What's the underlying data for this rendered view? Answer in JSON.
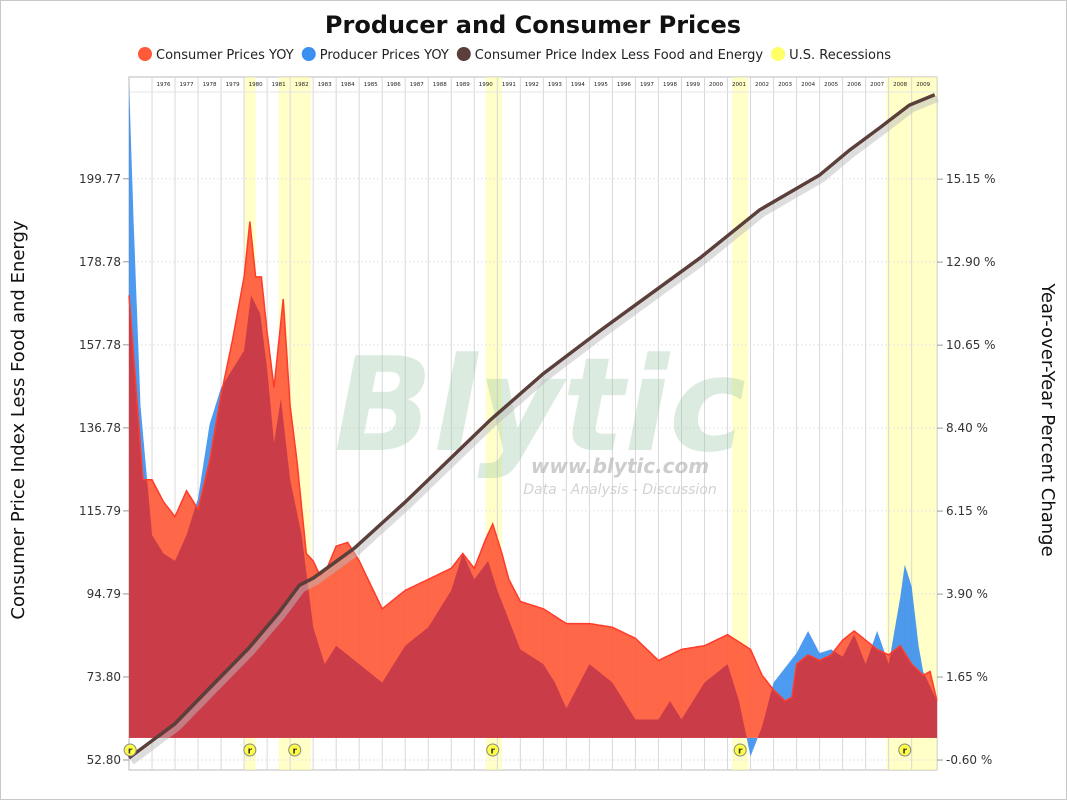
{
  "chart_data": {
    "type": "area",
    "title": "Producer and Consumer Prices",
    "ylabel_left": "Consumer Price Index Less Food and Energy",
    "ylabel_right": "Year-over-Year Percent Change",
    "xlim": [
      1975.0,
      2010.1
    ],
    "ylim_left": [
      50.27,
      225.5
    ],
    "ylim_right": [
      -0.87,
      17.92
    ],
    "grid": true,
    "legend_position": "top",
    "year_labels": [
      "1976",
      "1977",
      "1978",
      "1979",
      "1980",
      "1981",
      "1982",
      "1983",
      "1984",
      "1985",
      "1986",
      "1987",
      "1988",
      "1989",
      "1990",
      "1991",
      "1992",
      "1993",
      "1994",
      "1995",
      "1996",
      "1997",
      "1998",
      "1999",
      "2000",
      "2001",
      "2002",
      "2003",
      "2004",
      "2005",
      "2006",
      "2007",
      "2008",
      "2009"
    ],
    "left_ticks": [
      "52.80",
      "73.80",
      "94.79",
      "115.79",
      "136.78",
      "157.78",
      "178.78",
      "199.77"
    ],
    "left_tick_values": [
      52.8,
      73.8,
      94.79,
      115.79,
      136.78,
      157.78,
      178.78,
      199.77
    ],
    "right_ticks": [
      "-0.60 %",
      "1.65 %",
      "3.90 %",
      "6.15 %",
      "8.40 %",
      "10.65 %",
      "12.90 %",
      "15.15 %"
    ],
    "right_tick_values": [
      -0.6,
      1.65,
      3.9,
      6.15,
      8.4,
      10.65,
      12.9,
      15.15
    ],
    "legend": [
      {
        "label": "Consumer Prices YOY",
        "color": "#ff5a3a"
      },
      {
        "label": "Producer Prices YOY",
        "color": "#3a8ff0"
      },
      {
        "label": "Consumer Price Index Less Food and Energy",
        "color": "#5a3f3a"
      },
      {
        "label": "U.S. Recessions",
        "color": "#ffff66"
      }
    ],
    "series": [
      {
        "name": "Consumer Prices YOY",
        "axis": "right",
        "color": "#ff5a3a",
        "x": [
          1975.0,
          1975.3,
          1975.6,
          1976.0,
          1976.5,
          1977.0,
          1977.5,
          1978.0,
          1978.5,
          1979.0,
          1979.5,
          1980.0,
          1980.25,
          1980.5,
          1980.75,
          1981.0,
          1981.3,
          1981.7,
          1982.0,
          1982.3,
          1982.7,
          1983.0,
          1983.3,
          1983.6,
          1984.0,
          1984.5,
          1985.0,
          1986.0,
          1987.0,
          1988.0,
          1989.0,
          1989.5,
          1990.0,
          1990.5,
          1990.8,
          1991.2,
          1991.5,
          1992.0,
          1993.0,
          1994.0,
          1995.0,
          1996.0,
          1997.0,
          1998.0,
          1999.0,
          2000.0,
          2001.0,
          2001.5,
          2002.0,
          2002.5,
          2003.0,
          2003.5,
          2003.8,
          2004.0,
          2004.5,
          2005.0,
          2005.5,
          2006.0,
          2006.5,
          2007.0,
          2007.5,
          2008.0,
          2008.5,
          2009.0,
          2009.5,
          2009.8,
          2010.1
        ],
        "values": [
          12.0,
          9.5,
          7.0,
          7.0,
          6.4,
          6.0,
          6.7,
          6.2,
          7.5,
          9.3,
          10.8,
          12.5,
          14.0,
          12.5,
          12.5,
          11.0,
          9.5,
          11.9,
          9.0,
          7.5,
          5.0,
          4.8,
          4.4,
          4.6,
          5.2,
          5.3,
          4.8,
          3.5,
          4.0,
          4.3,
          4.6,
          5.0,
          4.6,
          5.4,
          5.8,
          5.0,
          4.3,
          3.7,
          3.5,
          3.1,
          3.1,
          3.0,
          2.7,
          2.1,
          2.4,
          2.5,
          2.8,
          2.6,
          2.4,
          1.7,
          1.3,
          1.0,
          1.1,
          2.0,
          2.25,
          2.1,
          2.25,
          2.65,
          2.9,
          2.65,
          2.4,
          2.25,
          2.5,
          2.0,
          1.7,
          1.8,
          1.0
        ]
      },
      {
        "name": "Producer Prices YOY",
        "axis": "right",
        "color": "#3a8ff0",
        "x": [
          1975.0,
          1975.2,
          1975.5,
          1976.0,
          1976.5,
          1977.0,
          1977.5,
          1978.0,
          1978.5,
          1979.0,
          1979.5,
          1980.0,
          1980.3,
          1980.7,
          1981.0,
          1981.3,
          1981.6,
          1982.0,
          1982.5,
          1983.0,
          1983.5,
          1984.0,
          1985.0,
          1986.0,
          1986.5,
          1987.0,
          1988.0,
          1989.0,
          1989.5,
          1990.0,
          1990.6,
          1991.0,
          1991.5,
          1992.0,
          1993.0,
          1993.5,
          1994.0,
          1995.0,
          1996.0,
          1997.0,
          1998.0,
          1998.5,
          1999.0,
          2000.0,
          2001.0,
          2001.5,
          2002.0,
          2002.5,
          2003.0,
          2004.0,
          2004.5,
          2005.0,
          2005.5,
          2006.0,
          2006.5,
          2007.0,
          2007.5,
          2008.0,
          2008.5,
          2008.7,
          2009.0,
          2009.3,
          2009.5,
          2010.1
        ],
        "values": [
          17.8,
          14.0,
          9.0,
          5.5,
          5.0,
          4.8,
          5.5,
          6.5,
          8.5,
          9.5,
          10.0,
          10.5,
          12.0,
          11.5,
          10.0,
          8.0,
          9.2,
          7.0,
          5.5,
          3.0,
          2.0,
          2.5,
          2.0,
          1.5,
          2.0,
          2.5,
          3.0,
          4.0,
          5.0,
          4.3,
          4.8,
          4.0,
          3.2,
          2.4,
          2.0,
          1.5,
          0.8,
          2.0,
          1.5,
          0.5,
          0.5,
          1.0,
          0.5,
          1.5,
          2.0,
          1.0,
          -0.5,
          0.3,
          1.5,
          2.3,
          2.9,
          2.3,
          2.4,
          2.2,
          2.8,
          2.0,
          2.9,
          2.0,
          3.8,
          4.7,
          4.1,
          2.5,
          1.8,
          1.0
        ]
      },
      {
        "name": "Consumer Price Index Less Food and Energy",
        "axis": "left",
        "color": "#5a3f3a",
        "x": [
          1975.0,
          1977.0,
          1978.5,
          1980.2,
          1981.5,
          1982.4,
          1983.0,
          1984.8,
          1987.0,
          1990.7,
          1993.0,
          1995.5,
          1999.8,
          2002.4,
          2005.0,
          2006.3,
          2007.6,
          2008.9,
          2010.0
        ],
        "values": [
          53.3,
          62.0,
          71.0,
          81.1,
          90.0,
          97.0,
          98.8,
          106.4,
          118.0,
          138.8,
          150.5,
          161.5,
          179.7,
          191.9,
          200.7,
          207.0,
          212.6,
          218.4,
          221.0
        ]
      }
    ],
    "recessions": [
      [
        1980.0,
        1980.5
      ],
      [
        1981.5,
        1982.9
      ],
      [
        1990.5,
        1991.2
      ],
      [
        2001.2,
        2001.9
      ],
      [
        2007.9,
        2010.1
      ]
    ],
    "recession_marker": "r",
    "recession_markers": [
      1975.05,
      1980.25,
      1982.2,
      1990.8,
      2001.55,
      2008.7
    ]
  },
  "watermark": {
    "logo": "Blytic",
    "url": "www.blytic.com",
    "tagline": "Data - Analysis - Discussion"
  }
}
